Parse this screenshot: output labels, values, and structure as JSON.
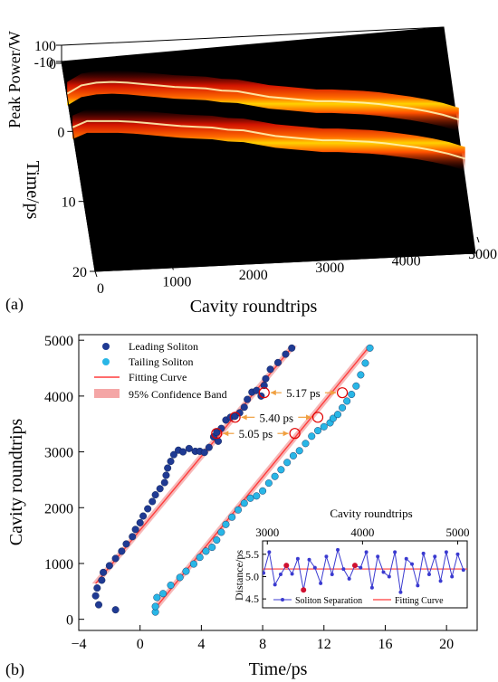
{
  "chart_data": [
    {
      "panel": "(a)",
      "type": "heatmap",
      "view": "3d-surface",
      "xlabel": "Cavity roundtrips",
      "ylabel": "Time/ps",
      "zlabel": "Peak Power/W",
      "x_ticks": [
        "0",
        "1000",
        "2000",
        "3000",
        "4000",
        "5000"
      ],
      "y_ticks": [
        "-10",
        "0",
        "10",
        "20"
      ],
      "z_ticks": [
        "0",
        "100"
      ],
      "xlim": [
        0,
        5000
      ],
      "ylim": [
        -10,
        20
      ],
      "zlim": [
        0,
        100
      ],
      "colormap": [
        "#000000",
        "#8b0000",
        "#ff2a00",
        "#ffd200",
        "#ffffff"
      ],
      "traces": [
        {
          "name_hint": "leading",
          "x": [
            0,
            200,
            400,
            600,
            800,
            1000,
            1200,
            1400,
            1600,
            1800,
            2000,
            2200,
            2400,
            2600,
            2800,
            3000,
            3200,
            3400,
            3600,
            3800,
            4000,
            4200,
            4400,
            4600,
            4800,
            5000
          ],
          "time": [
            -5.0,
            -6.0,
            -6.2,
            -6.1,
            -5.8,
            -5.4,
            -5.0,
            -4.6,
            -4.3,
            -4.0,
            -3.5,
            -3.2,
            -2.6,
            -2.0,
            -1.6,
            -1.2,
            -0.8,
            -0.6,
            -0.3,
            0.0,
            0.4,
            0.9,
            1.4,
            2.0,
            2.7,
            3.6
          ]
        },
        {
          "name_hint": "tailing",
          "x": [
            0,
            200,
            400,
            600,
            800,
            1000,
            1200,
            1400,
            1600,
            1800,
            2000,
            2200,
            2400,
            2600,
            2800,
            3000,
            3200,
            3400,
            3600,
            3800,
            4000,
            4200,
            4400,
            4600,
            4800,
            5000
          ],
          "time": [
            -0.2,
            -0.9,
            -0.7,
            -0.5,
            -0.2,
            0.2,
            0.6,
            1.0,
            1.3,
            1.6,
            2.1,
            2.4,
            3.0,
            3.6,
            4.0,
            4.4,
            4.8,
            5.0,
            5.3,
            5.6,
            6.0,
            6.5,
            7.0,
            7.6,
            8.3,
            9.2
          ]
        }
      ]
    },
    {
      "panel": "(b)",
      "type": "scatter",
      "xlabel": "Time/ps",
      "ylabel": "Cavity roundtrips",
      "xlim": [
        -4,
        22
      ],
      "ylim": [
        -200,
        5100
      ],
      "x_ticks": [
        "−4",
        "0",
        "4",
        "8",
        "12",
        "16",
        "20"
      ],
      "y_ticks": [
        "0",
        "1000",
        "2000",
        "3000",
        "4000",
        "5000"
      ],
      "legend": {
        "placement": "top-left",
        "entries": [
          "Leading Soliton",
          "Tailing Soliton",
          "Fitting Curve",
          "95% Confidence Band"
        ]
      },
      "colors": {
        "leading": "#1f3a93",
        "tailing": "#29b6e6",
        "fit": "#ff3b3b",
        "band": "#f4a6a6",
        "annotation": "#e00000",
        "arrow": "#f0a040"
      },
      "series": [
        {
          "name": "Leading Soliton",
          "x": [
            -1.6,
            -2.7,
            -2.9,
            -2.8,
            -2.5,
            -2.4,
            -2.0,
            -1.6,
            -1.2,
            -0.9,
            -0.5,
            -0.3,
            0.0,
            0.2,
            0.5,
            0.8,
            1.0,
            1.3,
            1.6,
            1.7,
            1.8,
            2.0,
            2.2,
            2.5,
            2.8,
            3.2,
            3.6,
            3.9,
            4.2,
            4.5,
            4.8,
            5.0,
            5.1,
            5.3,
            5.6,
            5.9,
            6.2,
            6.5,
            6.8,
            7.0,
            7.3,
            7.6,
            7.9,
            8.1,
            8.2,
            8.5,
            9.0,
            9.5,
            9.9
          ],
          "y": [
            170,
            260,
            420,
            560,
            700,
            840,
            960,
            1090,
            1220,
            1350,
            1480,
            1610,
            1730,
            1850,
            1980,
            2110,
            2230,
            2340,
            2450,
            2580,
            2710,
            2830,
            2950,
            3030,
            3000,
            3060,
            3010,
            3010,
            2990,
            3080,
            3270,
            3350,
            3190,
            3420,
            3570,
            3620,
            3640,
            3700,
            3800,
            3940,
            4070,
            4100,
            4000,
            4190,
            4310,
            4480,
            4600,
            4750,
            4860
          ]
        },
        {
          "name": "Tailing Soliton",
          "x": [
            1.0,
            1.0,
            1.1,
            1.5,
            2.0,
            2.6,
            3.0,
            3.5,
            3.9,
            4.3,
            4.7,
            5.0,
            5.3,
            5.6,
            6.0,
            6.4,
            6.8,
            7.2,
            7.6,
            8.0,
            8.4,
            8.8,
            9.2,
            9.6,
            10.0,
            10.4,
            10.8,
            11.2,
            11.6,
            12.0,
            12.4,
            12.6,
            12.9,
            13.2,
            13.5,
            13.8,
            14.1,
            14.4,
            14.7,
            15.0
          ],
          "y": [
            130,
            230,
            390,
            460,
            610,
            750,
            860,
            990,
            1110,
            1220,
            1290,
            1420,
            1560,
            1700,
            1830,
            1960,
            2080,
            2170,
            2210,
            2300,
            2440,
            2560,
            2680,
            2810,
            2930,
            3020,
            3150,
            3280,
            3380,
            3450,
            3520,
            3600,
            3670,
            3790,
            3910,
            4030,
            4180,
            4380,
            4590,
            4860
          ]
        }
      ],
      "fits": [
        {
          "x": [
            -2.9,
            10.0
          ],
          "y": [
            640,
            4900
          ]
        },
        {
          "x": [
            1.0,
            15.0
          ],
          "y": [
            200,
            4900
          ]
        }
      ],
      "annotations": [
        {
          "text": "5.17 ps",
          "x": 8.1,
          "y": 4060
        },
        {
          "text": "5.40 ps",
          "x": 6.2,
          "y": 3620
        },
        {
          "text": "5.05 ps",
          "x": 5.0,
          "y": 3330
        }
      ],
      "inset": {
        "type": "line",
        "xlabel": "Cavity roundtrips",
        "ylabel": "Distance/ps",
        "xlim": [
          2950,
          5100
        ],
        "ylim": [
          4.3,
          5.8
        ],
        "x_ticks": [
          "3000",
          "4000",
          "5000"
        ],
        "y_ticks": [
          "4.5",
          "5.0",
          "5.5"
        ],
        "legend": {
          "placement": "bottom",
          "entries": [
            "Soliton Separation",
            "Fitting Curve"
          ]
        },
        "fit_value": 5.17,
        "series": [
          {
            "name": "Soliton Separation",
            "x": [
              2960,
              3020,
              3080,
              3140,
              3200,
              3260,
              3320,
              3380,
              3440,
              3500,
              3560,
              3620,
              3680,
              3740,
              3800,
              3860,
              3920,
              3980,
              4040,
              4100,
              4160,
              4220,
              4280,
              4340,
              4400,
              4460,
              4520,
              4580,
              4640,
              4700,
              4760,
              4820,
              4880,
              4940,
              5000,
              5060
            ],
            "y": [
              5.08,
              5.55,
              4.82,
              5.05,
              5.25,
              5.06,
              5.4,
              4.7,
              5.38,
              5.2,
              4.85,
              5.45,
              5.05,
              5.6,
              5.17,
              4.95,
              5.25,
              5.2,
              5.55,
              4.75,
              5.45,
              5.1,
              5.0,
              5.55,
              4.65,
              5.4,
              5.28,
              4.8,
              5.52,
              5.05,
              5.45,
              4.9,
              5.55,
              5.0,
              5.5,
              5.15
            ]
          }
        ],
        "highlighted_x": [
          3200,
          3380,
          3920
        ]
      }
    }
  ],
  "labels": {
    "panel_a": "(a)",
    "panel_b": "(b)"
  }
}
